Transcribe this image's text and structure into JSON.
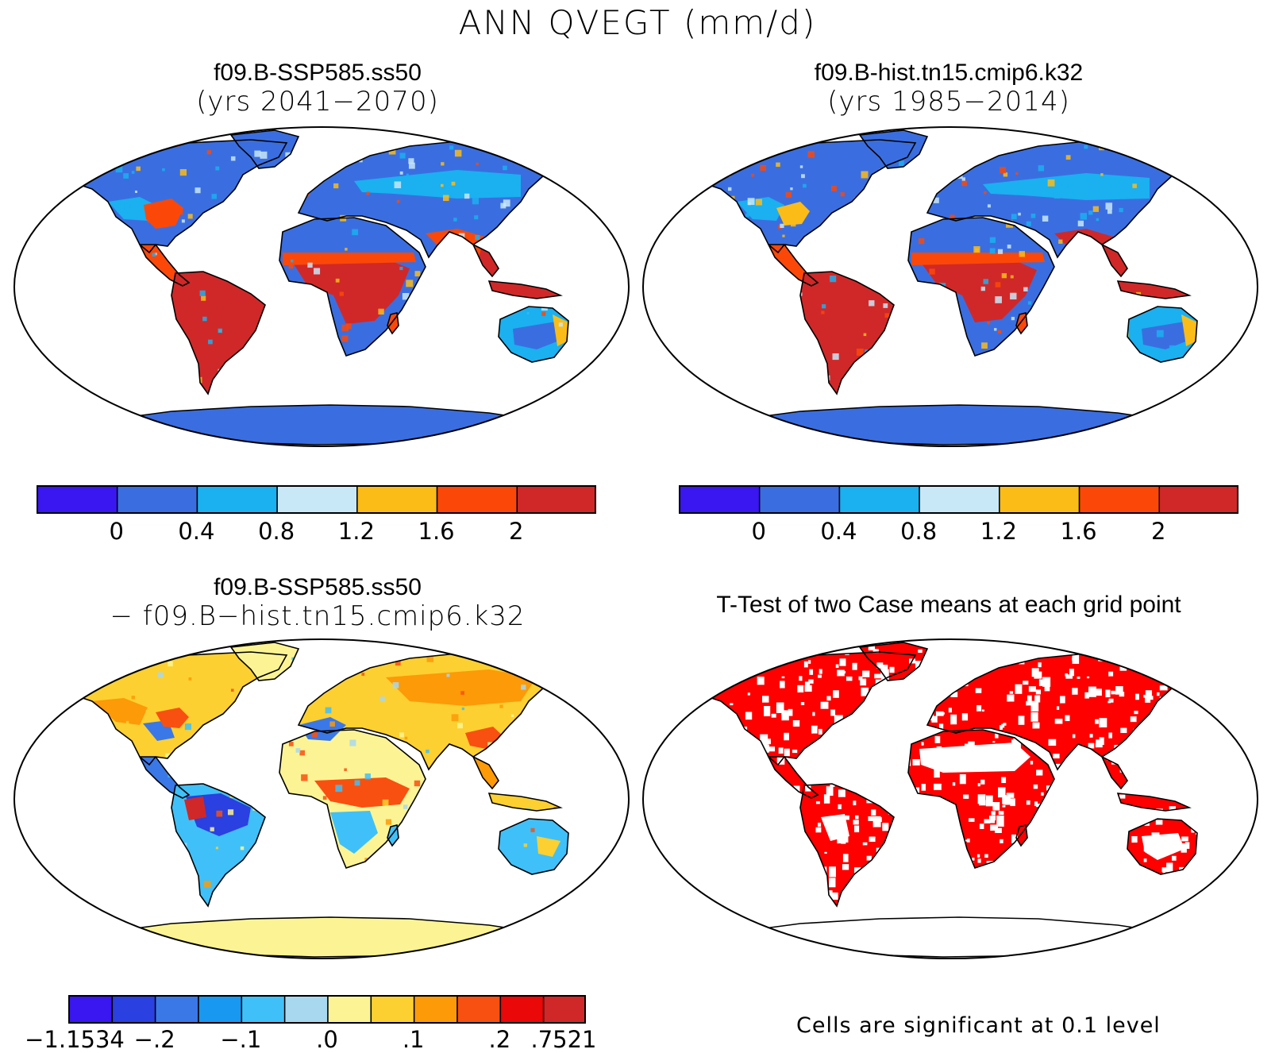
{
  "main_title": "ANN QVEGT (mm/d)",
  "panels": [
    {
      "id": "p1",
      "title": "f09.B-SSP585.ss50",
      "subtitle": "(yrs 2041−2070)"
    },
    {
      "id": "p2",
      "title": "f09.B-hist.tn15.cmip6.k32",
      "subtitle": "(yrs 1985−2014)"
    },
    {
      "id": "p3",
      "title": "f09.B-SSP585.ss50",
      "subtitle": "− f09.B−hist.tn15.cmip6.k32"
    },
    {
      "id": "p4",
      "title": "T-Test of two Case means at each grid point",
      "subtitle": ""
    }
  ],
  "colorbar_abs": {
    "colors": [
      "#3a16f0",
      "#3a6ee0",
      "#1bb0f0",
      "#c8e8f8",
      "#fbbc18",
      "#fb4808",
      "#d02828"
    ],
    "labels": [
      "0",
      "0.4",
      "0.8",
      "1.2",
      "1.6",
      "2"
    ]
  },
  "colorbar_diff": {
    "colors": [
      "#3a16f0",
      "#2a40e0",
      "#3a78e8",
      "#1898f0",
      "#40c0f8",
      "#a8d8f0",
      "#fcf494",
      "#fcd030",
      "#fc9a08",
      "#f85010",
      "#ea0808",
      "#d02828"
    ],
    "labels": [
      "−1.1534",
      "−.2",
      "−.1",
      ".0",
      ".1",
      ".2",
      ".7521"
    ]
  },
  "ttest_note": "Cells are significant at 0.1 level",
  "map_colors": {
    "ocean": "#ffffff",
    "coast": "#000000",
    "sig": "#ff0000"
  }
}
